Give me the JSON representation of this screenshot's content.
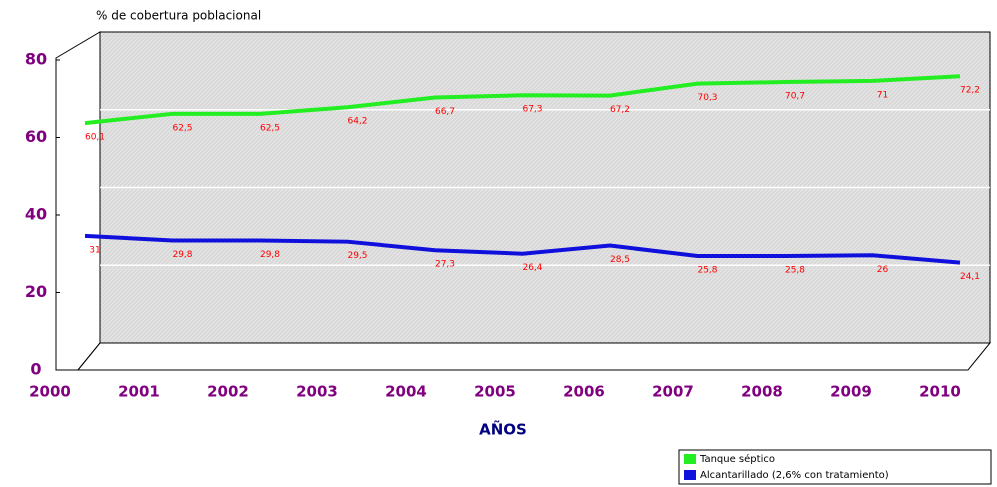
{
  "chart_data": {
    "type": "line",
    "title": "% de cobertura poblacional",
    "x_label": "AÑOS",
    "categories": [
      "2000",
      "2001",
      "2002",
      "2003",
      "2004",
      "2005",
      "2006",
      "2007",
      "2008",
      "2009",
      "2010"
    ],
    "series": [
      {
        "name": "Tanque séptico",
        "color": "#22ee22",
        "values": [
          60.1,
          62.5,
          62.5,
          64.2,
          66.7,
          67.3,
          67.2,
          70.3,
          70.7,
          71,
          72.2
        ],
        "value_labels": [
          "60,1",
          "62,5",
          "62,5",
          "64,2",
          "66,7",
          "67,3",
          "67,2",
          "70,3",
          "70,7",
          "71",
          "72,2"
        ]
      },
      {
        "name": "Alcantarillado (2,6% con tratamiento)",
        "color": "#1010dd",
        "values": [
          31,
          29.8,
          29.8,
          29.5,
          27.3,
          26.4,
          28.5,
          25.8,
          25.8,
          26,
          24.1
        ],
        "value_labels": [
          "31",
          "29,8",
          "29,8",
          "29,5",
          "27,3",
          "26,4",
          "28,5",
          "25,8",
          "25,8",
          "26",
          "24,1"
        ]
      }
    ],
    "ylim": [
      0,
      80
    ],
    "yticks": [
      0,
      20,
      40,
      60,
      80
    ],
    "grid": true,
    "legend": "lower right"
  }
}
